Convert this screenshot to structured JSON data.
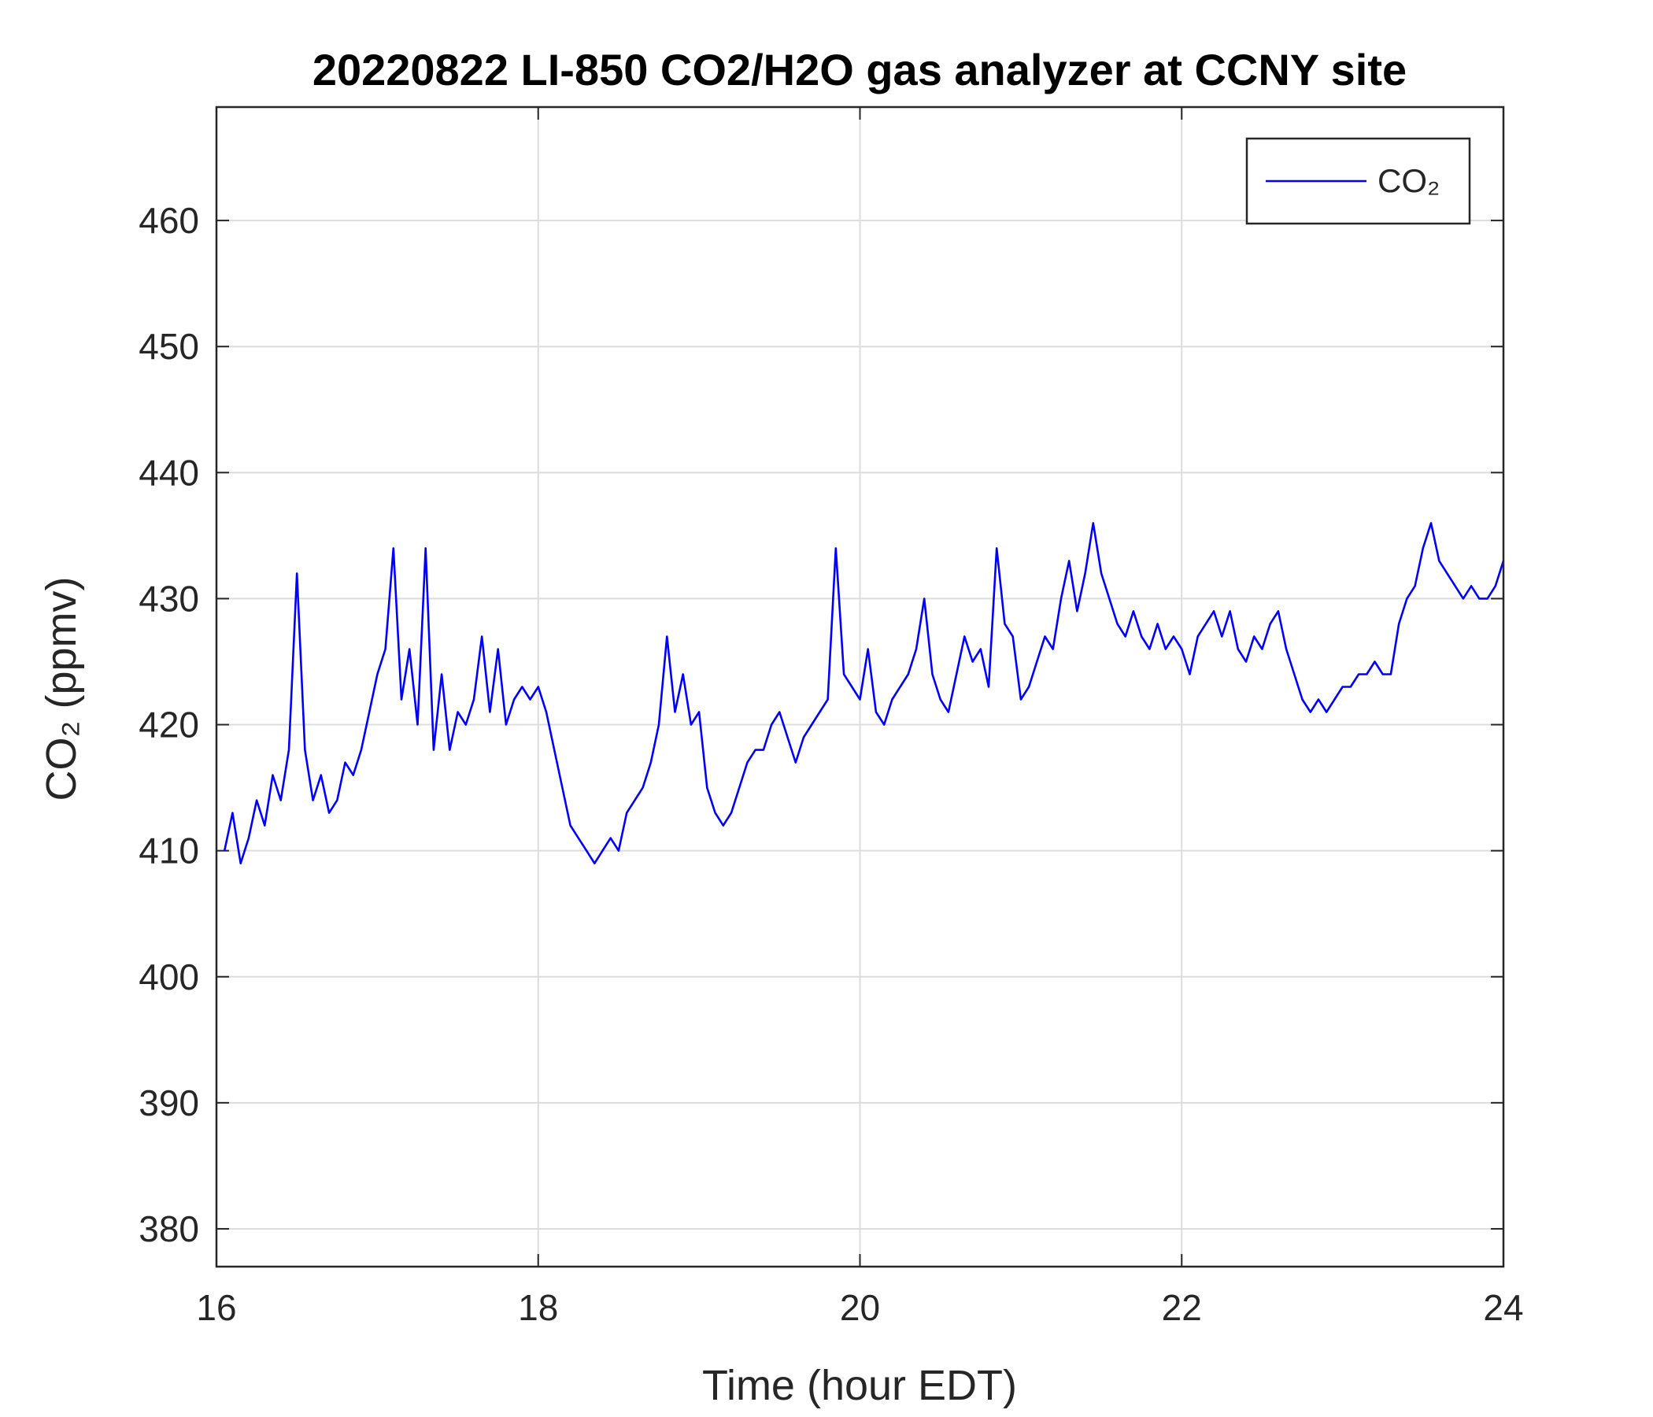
{
  "chart_data": {
    "type": "line",
    "title": "20220822 LI-850 CO2/H2O gas analyzer at CCNY site",
    "xlabel": "Time (hour EDT)",
    "ylabel": "CO₂ (ppmv)",
    "x": [
      16.05,
      16.1,
      16.15,
      16.2,
      16.25,
      16.3,
      16.35,
      16.4,
      16.45,
      16.5,
      16.55,
      16.6,
      16.65,
      16.7,
      16.75,
      16.8,
      16.85,
      16.9,
      16.95,
      17.0,
      17.05,
      17.1,
      17.15,
      17.2,
      17.25,
      17.3,
      17.35,
      17.4,
      17.45,
      17.5,
      17.55,
      17.6,
      17.65,
      17.7,
      17.75,
      17.8,
      17.85,
      17.9,
      17.95,
      18.0,
      18.05,
      18.1,
      18.15,
      18.2,
      18.25,
      18.3,
      18.35,
      18.4,
      18.45,
      18.5,
      18.55,
      18.6,
      18.65,
      18.7,
      18.75,
      18.8,
      18.85,
      18.9,
      18.95,
      19.0,
      19.05,
      19.1,
      19.15,
      19.2,
      19.25,
      19.3,
      19.35,
      19.4,
      19.45,
      19.5,
      19.55,
      19.6,
      19.65,
      19.7,
      19.75,
      19.8,
      19.85,
      19.9,
      19.95,
      20.0,
      20.05,
      20.1,
      20.15,
      20.2,
      20.25,
      20.3,
      20.35,
      20.4,
      20.45,
      20.5,
      20.55,
      20.6,
      20.65,
      20.7,
      20.75,
      20.8,
      20.85,
      20.9,
      20.95,
      21.0,
      21.05,
      21.1,
      21.15,
      21.2,
      21.25,
      21.3,
      21.35,
      21.4,
      21.45,
      21.5,
      21.55,
      21.6,
      21.65,
      21.7,
      21.75,
      21.8,
      21.85,
      21.9,
      21.95,
      22.0,
      22.05,
      22.1,
      22.15,
      22.2,
      22.25,
      22.3,
      22.35,
      22.4,
      22.45,
      22.5,
      22.55,
      22.6,
      22.65,
      22.7,
      22.75,
      22.8,
      22.85,
      22.9,
      22.95,
      23.0,
      23.05,
      23.1,
      23.15,
      23.2,
      23.25,
      23.3,
      23.35,
      23.4,
      23.45,
      23.5,
      23.55,
      23.6,
      23.65,
      23.7,
      23.75,
      23.8,
      23.85,
      23.9,
      23.95,
      24.0
    ],
    "series": [
      {
        "name": "CO₂",
        "color": "#0000ff",
        "values": [
          410,
          413,
          409,
          411,
          414,
          412,
          416,
          414,
          418,
          432,
          418,
          414,
          416,
          413,
          414,
          417,
          416,
          418,
          421,
          424,
          426,
          434,
          422,
          426,
          420,
          434,
          418,
          424,
          418,
          421,
          420,
          422,
          427,
          421,
          426,
          420,
          422,
          423,
          422,
          423,
          421,
          418,
          415,
          412,
          411,
          410,
          409,
          410,
          411,
          410,
          413,
          414,
          415,
          417,
          420,
          427,
          421,
          424,
          420,
          421,
          415,
          413,
          412,
          413,
          415,
          417,
          418,
          418,
          420,
          421,
          419,
          417,
          419,
          420,
          421,
          422,
          434,
          424,
          423,
          422,
          426,
          421,
          420,
          422,
          423,
          424,
          426,
          430,
          424,
          422,
          421,
          424,
          427,
          425,
          426,
          423,
          434,
          428,
          427,
          422,
          423,
          425,
          427,
          426,
          430,
          433,
          429,
          432,
          436,
          432,
          430,
          428,
          427,
          429,
          427,
          426,
          428,
          426,
          427,
          426,
          424,
          427,
          428,
          429,
          427,
          429,
          426,
          425,
          427,
          426,
          428,
          429,
          426,
          424,
          422,
          421,
          422,
          421,
          422,
          423,
          423,
          424,
          424,
          425,
          424,
          424,
          428,
          430,
          431,
          434,
          436,
          433,
          432,
          431,
          430,
          431,
          430,
          430,
          431,
          433
        ]
      }
    ],
    "xlim": [
      16,
      24
    ],
    "xticks": [
      16,
      18,
      20,
      22,
      24
    ],
    "ylim": [
      377,
      469
    ],
    "yticks": [
      380,
      390,
      400,
      410,
      420,
      430,
      440,
      450,
      460
    ],
    "grid": true,
    "legend": "upper right"
  }
}
